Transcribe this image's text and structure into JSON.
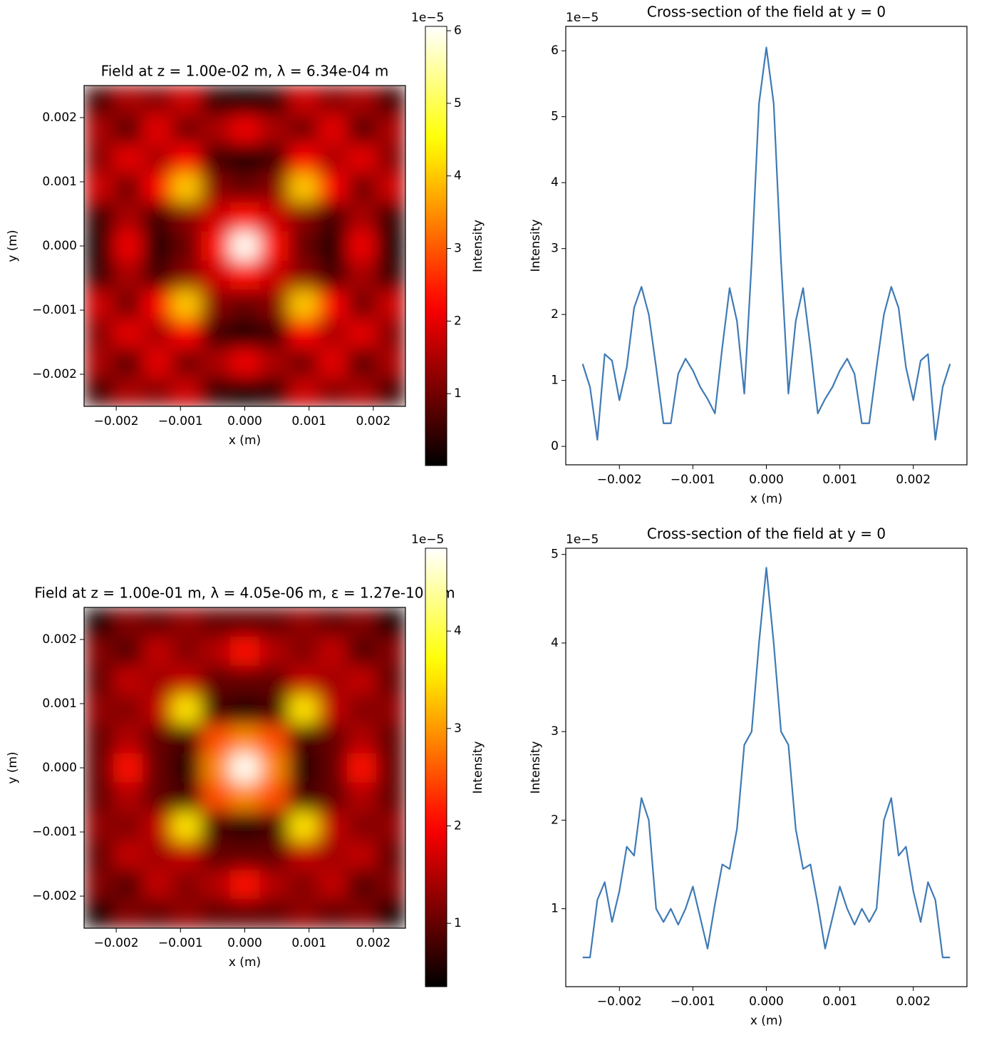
{
  "chart_data": [
    {
      "type": "heatmap",
      "title": "Field at z = 1.00e-02 m, λ = 6.34e-04 m",
      "xlabel": "x (m)",
      "ylabel": "y (m)",
      "xlim": [
        -0.0025,
        0.0025
      ],
      "ylim": [
        -0.0025,
        0.0025
      ],
      "xticks": [
        {
          "value": -0.002,
          "label": "−0.002"
        },
        {
          "value": -0.001,
          "label": "−0.001"
        },
        {
          "value": 0,
          "label": "0.000"
        },
        0.001,
        0.002
      ],
      "yticks": [
        {
          "value": -0.002,
          "label": "−0.002"
        },
        {
          "value": -0.001,
          "label": "−0.001"
        },
        {
          "value": 0,
          "label": "0.000"
        },
        0.001,
        0.002
      ],
      "colormap": "hot",
      "z": [
        [
          0.6,
          1.5,
          1.2,
          1.8,
          0.5,
          0.2,
          0.5,
          1.8,
          1.2,
          1.5,
          0.6
        ],
        [
          1.5,
          0.8,
          2.0,
          1.0,
          1.5,
          2.1,
          1.5,
          1.0,
          2.0,
          0.8,
          1.5
        ],
        [
          1.2,
          2.0,
          1.5,
          2.2,
          0.6,
          0.3,
          0.6,
          2.2,
          1.5,
          2.0,
          1.2
        ],
        [
          1.8,
          1.0,
          2.2,
          4.0,
          1.2,
          0.9,
          1.2,
          4.0,
          2.2,
          1.0,
          1.8
        ],
        [
          0.5,
          1.5,
          0.6,
          1.2,
          1.8,
          2.3,
          1.8,
          1.2,
          0.6,
          1.5,
          0.5
        ],
        [
          0.2,
          2.1,
          0.3,
          0.9,
          2.3,
          6.0,
          2.3,
          0.9,
          0.3,
          2.1,
          0.2
        ],
        [
          0.5,
          1.5,
          0.6,
          1.2,
          1.8,
          2.3,
          1.8,
          1.2,
          0.6,
          1.5,
          0.5
        ],
        [
          1.8,
          1.0,
          2.2,
          4.0,
          1.2,
          0.9,
          1.2,
          4.0,
          2.2,
          1.0,
          1.8
        ],
        [
          1.2,
          2.0,
          1.5,
          2.2,
          0.6,
          0.3,
          0.6,
          2.2,
          1.5,
          2.0,
          1.2
        ],
        [
          1.5,
          0.8,
          2.0,
          1.0,
          1.5,
          2.1,
          1.5,
          1.0,
          2.0,
          0.8,
          1.5
        ],
        [
          0.6,
          1.5,
          1.2,
          1.8,
          0.5,
          0.2,
          0.5,
          1.8,
          1.2,
          1.5,
          0.6
        ]
      ],
      "colorbar": {
        "label": "Intensity",
        "offset_label": "1e−5",
        "clim": [
          0.01,
          6.06
        ],
        "ticks": [
          1,
          2,
          3,
          4,
          5,
          6
        ]
      }
    },
    {
      "type": "line",
      "title": "Cross-section of the field at y = 0",
      "xlabel": "x (m)",
      "ylabel": "Intensity",
      "offset_label": "1e−5",
      "xlim": [
        -0.00273,
        0.00273
      ],
      "ylim": [
        -0.28,
        6.37
      ],
      "xticks": [
        {
          "value": -0.002,
          "label": "−0.002"
        },
        {
          "value": -0.001,
          "label": "−0.001"
        },
        {
          "value": 0,
          "label": "0.000"
        },
        0.001,
        0.002
      ],
      "yticks": [
        0,
        1,
        2,
        3,
        4,
        5,
        6
      ],
      "color": "#3f7ab5",
      "x": [
        -0.0025,
        -0.0024,
        -0.0023,
        -0.0022,
        -0.0021,
        -0.002,
        -0.0019,
        -0.0018,
        -0.0017,
        -0.0016,
        -0.0015,
        -0.0014,
        -0.0013,
        -0.0012,
        -0.0011,
        -0.001,
        -0.0009,
        -0.0008,
        -0.0007,
        -0.0006,
        -0.0005,
        -0.0004,
        -0.0003,
        -0.0002,
        -0.0001,
        0,
        0.0001,
        0.0002,
        0.0003,
        0.0004,
        0.0005,
        0.0006,
        0.0007,
        0.0008,
        0.0009,
        0.001,
        0.0011,
        0.0012,
        0.0013,
        0.0014,
        0.0015,
        0.0016,
        0.0017,
        0.0018,
        0.0019,
        0.002,
        0.0021,
        0.0022,
        0.0023,
        0.0024,
        0.0025
      ],
      "values": [
        1.25,
        0.9,
        0.1,
        1.4,
        1.3,
        0.7,
        1.2,
        2.1,
        2.42,
        2.0,
        1.2,
        0.35,
        0.35,
        1.1,
        1.33,
        1.15,
        0.9,
        0.72,
        0.5,
        1.5,
        2.4,
        1.9,
        0.8,
        2.8,
        5.2,
        6.05,
        5.2,
        2.8,
        0.8,
        1.9,
        2.4,
        1.5,
        0.5,
        0.72,
        0.9,
        1.15,
        1.33,
        1.1,
        0.35,
        0.35,
        1.2,
        2.0,
        2.42,
        2.1,
        1.2,
        0.7,
        1.3,
        1.4,
        0.1,
        0.9,
        1.25
      ]
    },
    {
      "type": "heatmap",
      "title": "Field at z = 1.00e-01 m, λ = 4.05e-06 m, ε = 1.27e-10 F/m",
      "xlabel": "x (m)",
      "ylabel": "y (m)",
      "xlim": [
        -0.0025,
        0.0025
      ],
      "ylim": [
        -0.0025,
        0.0025
      ],
      "xticks": [
        {
          "value": -0.002,
          "label": "−0.002"
        },
        {
          "value": -0.001,
          "label": "−0.001"
        },
        {
          "value": 0,
          "label": "0.000"
        },
        0.001,
        0.002
      ],
      "yticks": [
        {
          "value": -0.002,
          "label": "−0.002"
        },
        {
          "value": -0.001,
          "label": "−0.001"
        },
        {
          "value": 0,
          "label": "0.000"
        },
        0.001,
        0.002
      ],
      "colormap": "hot",
      "z": [
        [
          0.5,
          1.2,
          1.0,
          1.3,
          1.0,
          1.0,
          1.0,
          1.3,
          1.0,
          1.2,
          0.5
        ],
        [
          1.2,
          0.9,
          1.6,
          1.2,
          1.5,
          2.1,
          1.5,
          1.2,
          1.6,
          0.9,
          1.2
        ],
        [
          1.0,
          1.6,
          1.4,
          1.6,
          1.0,
          1.0,
          1.0,
          1.6,
          1.4,
          1.6,
          1.0
        ],
        [
          1.3,
          1.2,
          1.6,
          3.5,
          0.8,
          0.6,
          0.8,
          3.5,
          1.6,
          1.2,
          1.3
        ],
        [
          1.0,
          1.5,
          1.0,
          0.8,
          2.5,
          2.9,
          2.5,
          0.8,
          1.0,
          1.5,
          1.0
        ],
        [
          1.0,
          2.1,
          1.0,
          0.6,
          2.9,
          4.8,
          2.9,
          0.6,
          1.0,
          2.1,
          1.0
        ],
        [
          1.0,
          1.5,
          1.0,
          0.8,
          2.5,
          2.9,
          2.5,
          0.8,
          1.0,
          1.5,
          1.0
        ],
        [
          1.3,
          1.2,
          1.6,
          3.5,
          0.8,
          0.6,
          0.8,
          3.5,
          1.6,
          1.2,
          1.3
        ],
        [
          1.0,
          1.6,
          1.4,
          1.6,
          1.0,
          1.0,
          1.0,
          1.6,
          1.4,
          1.6,
          1.0
        ],
        [
          1.2,
          0.9,
          1.6,
          1.2,
          1.5,
          2.1,
          1.5,
          1.2,
          1.6,
          0.9,
          1.2
        ],
        [
          0.5,
          1.2,
          1.0,
          1.3,
          1.0,
          1.0,
          1.0,
          1.3,
          1.0,
          1.2,
          0.5
        ]
      ],
      "colorbar": {
        "label": "Intensity",
        "offset_label": "1e−5",
        "clim": [
          0.35,
          4.85
        ],
        "ticks": [
          1,
          2,
          3,
          4
        ]
      }
    },
    {
      "type": "line",
      "title": "Cross-section of the field at y = 0",
      "xlabel": "x (m)",
      "ylabel": "Intensity",
      "offset_label": "1e−5",
      "xlim": [
        -0.00273,
        0.00273
      ],
      "ylim": [
        0.12,
        5.07
      ],
      "xticks": [
        {
          "value": -0.002,
          "label": "−0.002"
        },
        {
          "value": -0.001,
          "label": "−0.001"
        },
        {
          "value": 0,
          "label": "0.000"
        },
        0.001,
        0.002
      ],
      "yticks": [
        1,
        2,
        3,
        4,
        5
      ],
      "color": "#3f7ab5",
      "x": [
        -0.0025,
        -0.0024,
        -0.0023,
        -0.0022,
        -0.0021,
        -0.002,
        -0.0019,
        -0.0018,
        -0.0017,
        -0.0016,
        -0.0015,
        -0.0014,
        -0.0013,
        -0.0012,
        -0.0011,
        -0.001,
        -0.0009,
        -0.0008,
        -0.0007,
        -0.0006,
        -0.0005,
        -0.0004,
        -0.0003,
        -0.0002,
        -0.0001,
        0,
        0.0001,
        0.0002,
        0.0003,
        0.0004,
        0.0005,
        0.0006,
        0.0007,
        0.0008,
        0.0009,
        0.001,
        0.0011,
        0.0012,
        0.0013,
        0.0014,
        0.0015,
        0.0016,
        0.0017,
        0.0018,
        0.0019,
        0.002,
        0.0021,
        0.0022,
        0.0023,
        0.0024,
        0.0025
      ],
      "values": [
        0.45,
        0.45,
        1.1,
        1.3,
        0.85,
        1.2,
        1.7,
        1.6,
        2.25,
        2.0,
        1.0,
        0.85,
        1.0,
        0.82,
        1.0,
        1.25,
        0.9,
        0.55,
        1.05,
        1.5,
        1.45,
        1.9,
        2.85,
        3.0,
        4.0,
        4.85,
        4.0,
        3.0,
        2.85,
        1.9,
        1.45,
        1.5,
        1.05,
        0.55,
        0.9,
        1.25,
        1.0,
        0.82,
        1.0,
        0.85,
        1.0,
        2.0,
        2.25,
        1.6,
        1.7,
        1.2,
        0.85,
        1.3,
        1.1,
        0.45,
        0.45
      ]
    }
  ]
}
